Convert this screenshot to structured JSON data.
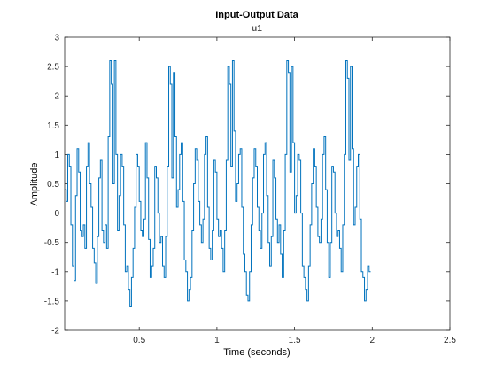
{
  "chart_data": {
    "type": "line",
    "step": true,
    "title": "Input-Output Data",
    "subtitle": "u1",
    "xlabel": "Time (seconds)",
    "ylabel": "Amplitude",
    "xlim": [
      0.02,
      2.5
    ],
    "ylim": [
      -2,
      3
    ],
    "xticks": [
      0.5,
      1,
      1.5,
      2,
      2.5
    ],
    "xtick_labels": [
      "0.5",
      "1",
      "1.5",
      "2",
      "2.5"
    ],
    "yticks": [
      -2,
      -1.5,
      -1,
      -0.5,
      0,
      0.5,
      1,
      1.5,
      2,
      2.5,
      3
    ],
    "ytick_labels": [
      "-2",
      "-1.5",
      "-1",
      "-0.5",
      "0",
      "0.5",
      "1",
      "1.5",
      "2",
      "2.5",
      "3"
    ],
    "grid": false,
    "box": true,
    "line_color": "#0072BD",
    "series": [
      {
        "x_start": 0.02,
        "dt": 0.01,
        "values": [
          0.4,
          0.2,
          1.0,
          0.8,
          -0.2,
          -0.9,
          -1.15,
          0.3,
          1.1,
          0.7,
          -0.3,
          -0.4,
          -0.2,
          -0.6,
          0.8,
          1.2,
          0.5,
          0.1,
          -0.6,
          -0.85,
          -1.2,
          -0.4,
          0.6,
          0.9,
          -0.3,
          -0.5,
          -0.2,
          -0.6,
          1.3,
          2.6,
          2.2,
          0.5,
          2.6,
          1.0,
          -0.3,
          0.3,
          1.0,
          0.8,
          -0.2,
          -1.0,
          -0.9,
          -1.3,
          -1.6,
          -1.1,
          -0.6,
          0.1,
          1.0,
          0.8,
          0.2,
          -0.3,
          -0.4,
          -0.1,
          1.2,
          0.6,
          -0.45,
          -1.1,
          -0.9,
          -0.6,
          0.8,
          0.6,
          0.0,
          -0.5,
          -0.4,
          -0.9,
          -1.1,
          -0.4,
          0.8,
          2.5,
          2.2,
          0.6,
          2.4,
          1.3,
          0.1,
          0.4,
          1.0,
          1.2,
          0.2,
          -0.8,
          -1.0,
          -1.5,
          -1.3,
          -1.1,
          -0.3,
          0.5,
          1.1,
          0.9,
          0.2,
          -0.2,
          -0.5,
          -0.1,
          1.0,
          1.3,
          0.1,
          -0.6,
          -0.8,
          -0.3,
          0.9,
          0.7,
          -0.1,
          -0.4,
          -0.3,
          -0.6,
          -1.0,
          -0.3,
          0.9,
          2.5,
          2.2,
          0.8,
          2.6,
          1.4,
          0.2,
          0.5,
          1.0,
          1.1,
          0.1,
          -0.7,
          -1.0,
          -1.4,
          -1.5,
          -1.0,
          -0.2,
          0.6,
          1.1,
          0.8,
          0.1,
          -0.3,
          -0.6,
          0.0,
          1.0,
          1.2,
          0.3,
          -0.5,
          -0.9,
          -0.4,
          0.9,
          0.6,
          -0.1,
          -0.5,
          -0.2,
          -0.7,
          -1.1,
          -0.3,
          1.0,
          2.6,
          2.4,
          0.7,
          2.5,
          1.2,
          0.0,
          0.3,
          1.0,
          0.9,
          0.0,
          -0.9,
          -1.1,
          -1.3,
          -1.5,
          -0.9,
          -0.2,
          0.5,
          1.1,
          0.8,
          0.1,
          -0.4,
          -0.5,
          -0.1,
          1.0,
          1.3,
          0.4,
          -0.5,
          -1.1,
          -0.5,
          0.8,
          0.7,
          0.0,
          -0.4,
          -0.3,
          -0.6,
          -1.0,
          -0.2,
          1.0,
          2.6,
          2.3,
          0.9,
          2.5,
          1.1,
          -0.2,
          0.1,
          0.8,
          1.0,
          -0.1,
          -1.0,
          -1.1,
          -1.5,
          -1.3,
          -0.9,
          -1.0
        ]
      }
    ]
  }
}
